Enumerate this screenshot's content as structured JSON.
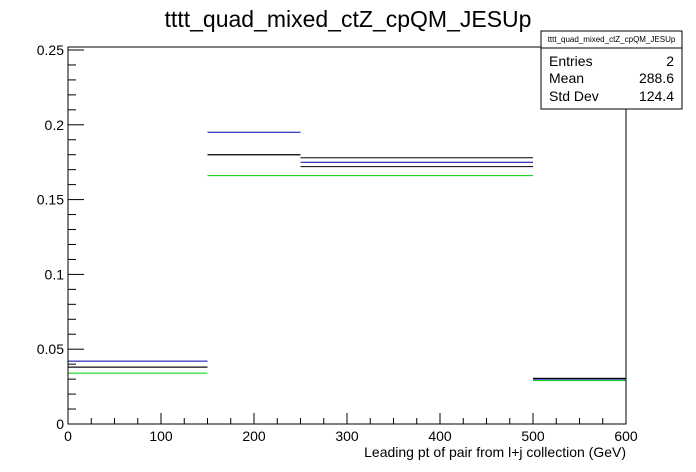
{
  "chart_data": {
    "type": "line",
    "title": "tttt_quad_mixed_ctZ_cpQM_JESUp",
    "xlabel": "Leading pt of pair from l+j collection (GeV)",
    "ylabel": "",
    "xlim": [
      0,
      600
    ],
    "ylim": [
      0,
      0.252
    ],
    "grid": false,
    "x_ticks": [
      0,
      100,
      200,
      300,
      400,
      500,
      600
    ],
    "x_tick_labels": [
      "0",
      "100",
      "200",
      "300",
      "400",
      "500",
      "600"
    ],
    "y_ticks": [
      0,
      0.05,
      0.1,
      0.15,
      0.2,
      0.25
    ],
    "y_tick_labels": [
      "0",
      "0.05",
      "0.1",
      "0.15",
      "0.2",
      "0.25"
    ],
    "bin_edges": [
      0,
      150,
      250,
      500,
      600
    ],
    "series": [
      {
        "color": "#0000aa",
        "values": [
          0.042,
          0.195,
          0.175,
          0.03
        ]
      },
      {
        "color": "#000000",
        "values": [
          0.038,
          0.18,
          0.178,
          0.0305
        ]
      },
      {
        "color": "#000000",
        "values": [
          0.038,
          0.18,
          0.172,
          0.0305
        ]
      },
      {
        "color": "#00cc00",
        "values": [
          0.034,
          0.166,
          0.166,
          0.029
        ]
      }
    ],
    "stats_box": {
      "name": "tttt_quad_mixed_ctZ_cpQM_JESUp",
      "rows": [
        {
          "label": "Entries",
          "value": "2"
        },
        {
          "label": "Mean",
          "value": "288.6"
        },
        {
          "label": "Std Dev",
          "value": "124.4"
        }
      ]
    }
  }
}
